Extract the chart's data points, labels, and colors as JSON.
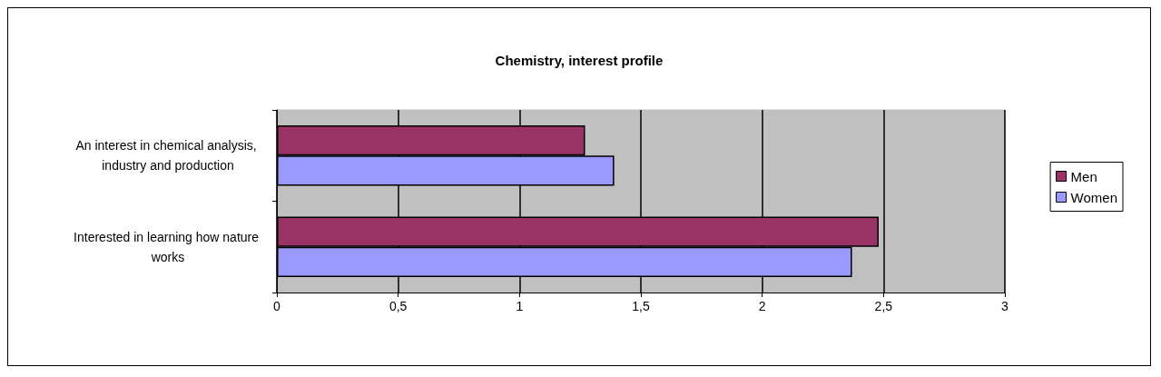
{
  "chart_data": {
    "type": "bar",
    "orientation": "horizontal",
    "title": "Chemistry, interest profile",
    "categories": [
      "An interest in chemical analysis, industry and production",
      "Interested in learning how nature works"
    ],
    "series": [
      {
        "name": "Men",
        "color": "#993366",
        "values": [
          1.27,
          2.48
        ]
      },
      {
        "name": "Women",
        "color": "#9999ff",
        "values": [
          1.39,
          2.37
        ]
      }
    ],
    "xlim": [
      0,
      3
    ],
    "xticks": [
      0,
      {
        "value": 0.5,
        "label": "0,5"
      },
      1,
      {
        "value": 1.5,
        "label": "1,5"
      },
      2,
      {
        "value": 2.5,
        "label": "2,5"
      },
      3
    ],
    "grid": "x",
    "legend": "right"
  }
}
